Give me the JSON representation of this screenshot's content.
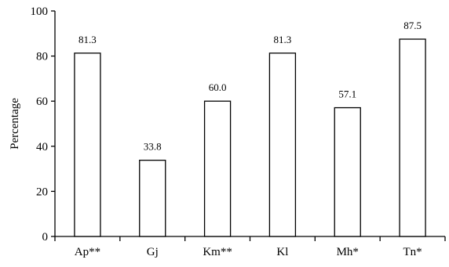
{
  "chart_data": {
    "type": "bar",
    "categories": [
      "Ap**",
      "Gj",
      "Km**",
      "Kl",
      "Mh*",
      "Tn*"
    ],
    "values": [
      81.3,
      33.8,
      60.0,
      81.3,
      57.1,
      87.5
    ],
    "value_labels": [
      "81.3",
      "33.8",
      "60.0",
      "81.3",
      "57.1",
      "87.5"
    ],
    "ylabel": "Percentage",
    "ylim": [
      0,
      100
    ],
    "yticks": [
      0,
      20,
      40,
      60,
      80,
      100
    ],
    "grid": false,
    "bar_fill": "#ffffff",
    "bar_stroke": "#000000"
  }
}
